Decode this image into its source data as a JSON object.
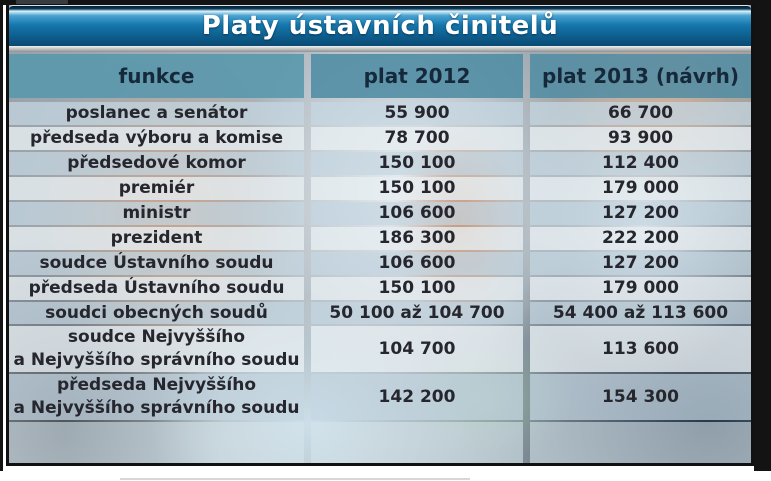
{
  "table": {
    "title": "Platy ústavních činitelů",
    "columns": [
      "funkce",
      "plat 2012",
      "plat 2013 (návrh)"
    ],
    "rows": [
      {
        "label_lines": [
          "poslanec a senátor"
        ],
        "plat_2012": "55 900",
        "plat_2013": "66 700"
      },
      {
        "label_lines": [
          "předseda výboru a komise"
        ],
        "plat_2012": "78 700",
        "plat_2013": "93 900"
      },
      {
        "label_lines": [
          "předsedové komor"
        ],
        "plat_2012": "150 100",
        "plat_2013": "112 400"
      },
      {
        "label_lines": [
          "premiér"
        ],
        "plat_2012": "150 100",
        "plat_2013": "179 000"
      },
      {
        "label_lines": [
          "ministr"
        ],
        "plat_2012": "106 600",
        "plat_2013": "127 200"
      },
      {
        "label_lines": [
          "prezident"
        ],
        "plat_2012": "186 300",
        "plat_2013": "222 200"
      },
      {
        "label_lines": [
          "soudce Ústavního soudu"
        ],
        "plat_2012": "106 600",
        "plat_2013": "127 200"
      },
      {
        "label_lines": [
          "předseda Ústavního soudu"
        ],
        "plat_2012": "150 100",
        "plat_2013": "179 000"
      },
      {
        "label_lines": [
          "soudci obecných soudů"
        ],
        "plat_2012": "50 100 až 104 700",
        "plat_2013": "54 400 až 113 600"
      },
      {
        "label_lines": [
          "soudce Nejvyššího",
          "a Nejvyššího správního soudu"
        ],
        "plat_2012": "104 700",
        "plat_2013": "113 600"
      },
      {
        "label_lines": [
          "předseda Nejvyššího",
          "a Nejvyššího správního soudu"
        ],
        "plat_2012": "142 200",
        "plat_2013": "154 300"
      }
    ]
  },
  "colors": {
    "title_bar_blue": "#1576ab",
    "header_teal": "#5b96ad",
    "header_text": "#15293b",
    "row_overlay_blue": "#c5d7e2",
    "row_overlay_light": "#e7eff3",
    "body_text": "#26262e",
    "frame_black": "#131313"
  }
}
